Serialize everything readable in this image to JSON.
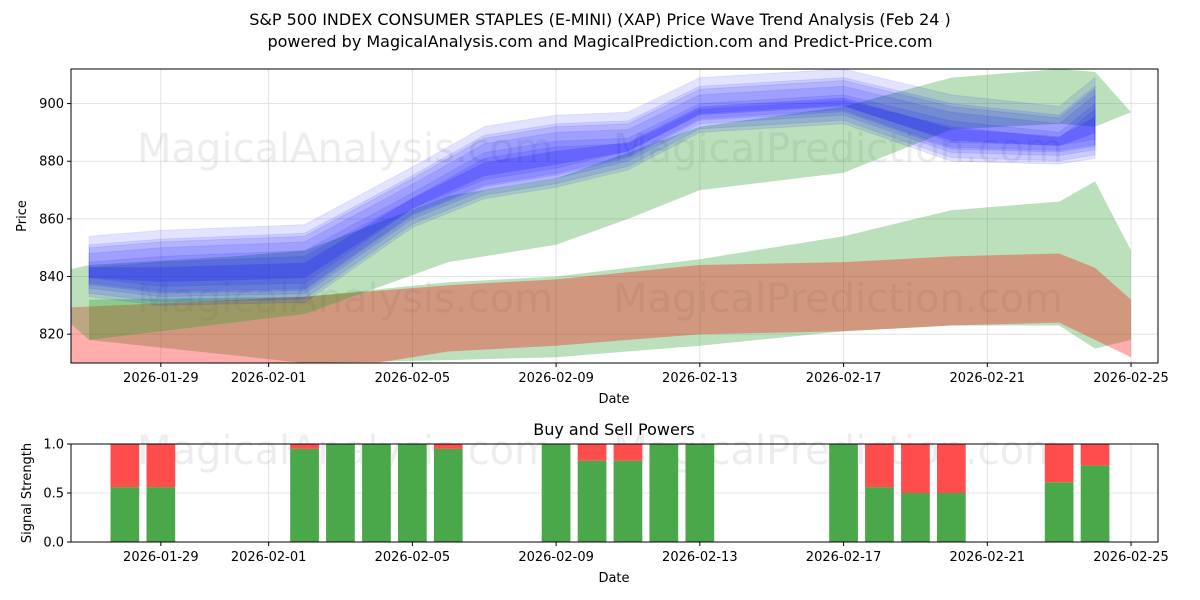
{
  "chart_data": [
    {
      "type": "area",
      "title": "S&P 500 INDEX CONSUMER STAPLES (E-MINI) (XAP) Price Wave Trend Analysis (Feb 24 )",
      "subtitle": "powered by MagicalAnalysis.com and MagicalPrediction.com and Predict-Price.com",
      "xlabel": "Date",
      "ylabel": "Price",
      "xlim": [
        "2026-01-26T12:00",
        "2026-02-25T18:00"
      ],
      "ylim": [
        810,
        912
      ],
      "x_ticks": [
        "2026-01-29",
        "2026-02-01",
        "2026-02-05",
        "2026-02-09",
        "2026-02-13",
        "2026-02-17",
        "2026-02-21",
        "2026-02-25"
      ],
      "y_ticks": [
        820,
        840,
        860,
        880,
        900
      ],
      "grid": true,
      "watermark": [
        "MagicalAnalysis.com",
        "MagicalPrediction.com"
      ],
      "series": [
        {
          "name": "Upper Green Band",
          "color": "#2ca02c",
          "x": [
            "2026-01-26",
            "2026-01-27",
            "2026-01-31",
            "2026-02-02",
            "2026-02-06",
            "2026-02-09",
            "2026-02-11",
            "2026-02-13",
            "2026-02-17",
            "2026-02-20",
            "2026-02-23",
            "2026-02-24",
            "2026-02-25"
          ],
          "upper": [
            841,
            844,
            847,
            849,
            868,
            874,
            883,
            892,
            899,
            909,
            912,
            911,
            897
          ],
          "lower": [
            829,
            818,
            824,
            827,
            845,
            851,
            860,
            870,
            876,
            891,
            893,
            892,
            897
          ]
        },
        {
          "name": "Lower Green Band",
          "color": "#2ca02c",
          "x": [
            "2026-01-27",
            "2026-02-02",
            "2026-02-06",
            "2026-02-09",
            "2026-02-13",
            "2026-02-17",
            "2026-02-20",
            "2026-02-23",
            "2026-02-24",
            "2026-02-25"
          ],
          "upper": [
            832,
            833,
            838,
            840,
            846,
            854,
            863,
            866,
            873,
            849
          ],
          "lower": [
            818,
            810,
            811,
            812,
            816,
            821,
            823,
            823,
            815,
            818
          ]
        },
        {
          "name": "Red Band",
          "color": "#ff0000",
          "x": [
            "2026-01-26",
            "2026-02-02",
            "2026-02-06",
            "2026-02-09",
            "2026-02-13",
            "2026-02-17",
            "2026-02-20",
            "2026-02-23",
            "2026-02-24",
            "2026-02-25"
          ],
          "upper": [
            829,
            833,
            837,
            839,
            844,
            845,
            847,
            848,
            843,
            832
          ],
          "lower": [
            810,
            806,
            814,
            816,
            820,
            821,
            823,
            824,
            818,
            812
          ]
        },
        {
          "name": "Blue Wave Band",
          "color": "#0000ff",
          "x": [
            "2026-01-27",
            "2026-01-29",
            "2026-02-02",
            "2026-02-05",
            "2026-02-07",
            "2026-02-09",
            "2026-02-11",
            "2026-02-13",
            "2026-02-17",
            "2026-02-20",
            "2026-02-23",
            "2026-02-24"
          ],
          "upper": [
            848,
            850,
            852,
            872,
            886,
            890,
            891,
            903,
            906,
            897,
            893,
            903
          ],
          "lower": [
            836,
            833,
            834,
            860,
            870,
            874,
            880,
            893,
            896,
            883,
            882,
            884
          ]
        }
      ]
    },
    {
      "type": "bar",
      "title": "Buy and Sell Powers",
      "xlabel": "Date",
      "ylabel": "Signal Strength",
      "ylim": [
        0,
        1
      ],
      "y_ticks": [
        "0.0",
        "0.5",
        "1.0"
      ],
      "x_ticks": [
        "2026-01-29",
        "2026-02-01",
        "2026-02-05",
        "2026-02-09",
        "2026-02-13",
        "2026-02-17",
        "2026-02-21",
        "2026-02-25"
      ],
      "stacked": true,
      "dates": [
        "2026-01-28",
        "2026-01-29",
        "2026-02-02",
        "2026-02-03",
        "2026-02-04",
        "2026-02-05",
        "2026-02-06",
        "2026-02-09",
        "2026-02-10",
        "2026-02-11",
        "2026-02-12",
        "2026-02-13",
        "2026-02-17",
        "2026-02-18",
        "2026-02-19",
        "2026-02-20",
        "2026-02-23",
        "2026-02-24"
      ],
      "series": [
        {
          "name": "Buy",
          "color": "#4aa84a",
          "values": [
            0.56,
            0.56,
            0.95,
            1.0,
            1.0,
            1.0,
            0.95,
            1.0,
            0.83,
            0.83,
            1.0,
            1.0,
            1.0,
            0.56,
            0.5,
            0.5,
            0.61,
            0.78
          ]
        },
        {
          "name": "Sell",
          "color": "#ff4c4c",
          "values": [
            0.44,
            0.44,
            0.05,
            0.0,
            0.0,
            0.0,
            0.05,
            0.0,
            0.17,
            0.17,
            0.0,
            0.0,
            0.0,
            0.44,
            0.5,
            0.5,
            0.39,
            0.22
          ]
        }
      ]
    }
  ]
}
